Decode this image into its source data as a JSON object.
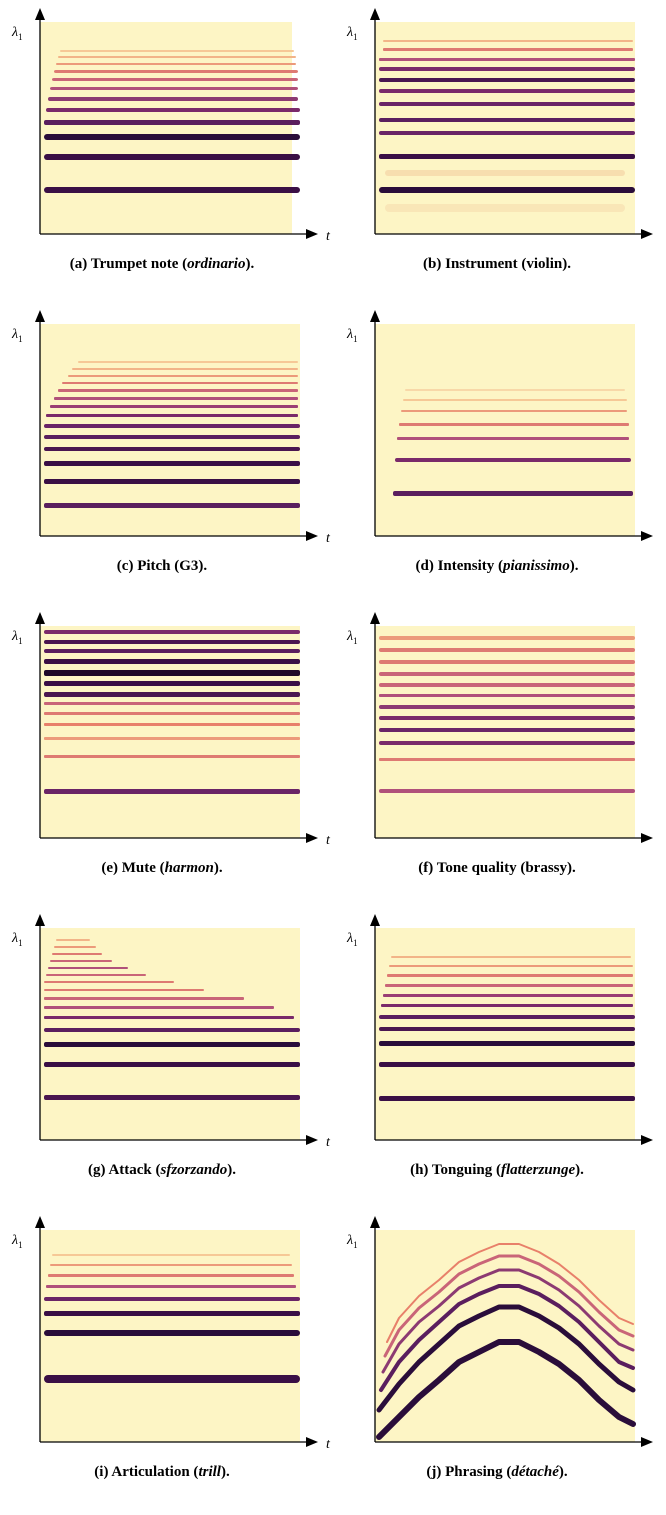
{
  "colors": {
    "background": "#fdf5c5",
    "band_dark": "#2a0d3a",
    "band_mid": "#7a2a6a",
    "band_light": "#e8806a"
  },
  "axis": {
    "y_symbol": "λ",
    "y_subscript": "1",
    "x_symbol": "t"
  },
  "panels": [
    {
      "id": "a",
      "caption_prefix": "(a) Trumpet note (",
      "caption_em": "ordinario",
      "caption_suffix": ")."
    },
    {
      "id": "b",
      "caption_prefix": "(b) Instrument (violin).",
      "caption_em": "",
      "caption_suffix": ""
    },
    {
      "id": "c",
      "caption_prefix": "(c) Pitch (G3).",
      "caption_em": "",
      "caption_suffix": ""
    },
    {
      "id": "d",
      "caption_prefix": "(d) Intensity (",
      "caption_em": "pianissimo",
      "caption_suffix": ")."
    },
    {
      "id": "e",
      "caption_prefix": "(e) Mute (",
      "caption_em": "harmon",
      "caption_suffix": ")."
    },
    {
      "id": "f",
      "caption_prefix": "(f) Tone quality (brassy).",
      "caption_em": "",
      "caption_suffix": ""
    },
    {
      "id": "g",
      "caption_prefix": "(g) Attack (",
      "caption_em": "sfzorzando",
      "caption_suffix": ")."
    },
    {
      "id": "h",
      "caption_prefix": "(h) Tonguing (",
      "caption_em": "flatterzunge",
      "caption_suffix": ")."
    },
    {
      "id": "i",
      "caption_prefix": "(i) Articulation (",
      "caption_em": "trill",
      "caption_suffix": ")."
    },
    {
      "id": "j",
      "caption_prefix": "(j) Phrasing (",
      "caption_em": "détaché",
      "caption_suffix": ")."
    }
  ]
}
